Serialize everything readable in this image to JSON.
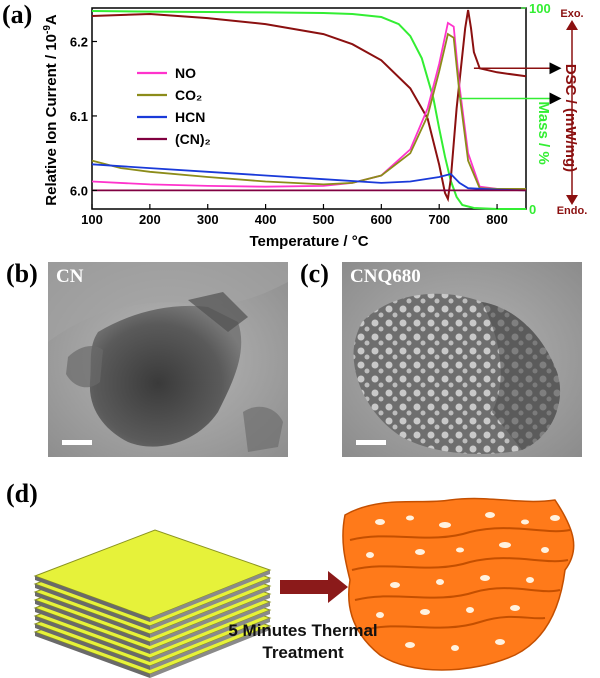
{
  "panels": {
    "a": "(a)",
    "b": "(b)",
    "c": "(c)",
    "d": "(d)"
  },
  "chart_data": {
    "type": "line",
    "xlabel": "Temperature / °C",
    "ylabel_left": "Relative Ion Current / 10",
    "ylabel_left_sup": "-9",
    "ylabel_left_unit": "A",
    "ylabel_right_mass": "Mass / %",
    "ylabel_right_dsc": "DSC / (mW/mg)",
    "dsc_exo_label": "Exo.",
    "dsc_endo_label": "Endo.",
    "xlim": [
      100,
      850
    ],
    "ylim_left": [
      5.975,
      6.245
    ],
    "ylim_right": [
      0,
      100
    ],
    "x_ticks": [
      "100",
      "200",
      "300",
      "400",
      "500",
      "600",
      "700",
      "800"
    ],
    "y_ticks_left": [
      "6.0",
      "6.1",
      "6.2"
    ],
    "y_ticks_right": [
      "0",
      "100"
    ],
    "legend_position": "upper-left",
    "series": [
      {
        "name": "NO",
        "color": "#ff33cc",
        "x": [
          100,
          200,
          300,
          400,
          500,
          550,
          600,
          650,
          680,
          700,
          715,
          725,
          735,
          750,
          770,
          800,
          850
        ],
        "y": [
          6.012,
          6.008,
          6.006,
          6.005,
          6.006,
          6.01,
          6.02,
          6.055,
          6.11,
          6.17,
          6.225,
          6.22,
          6.14,
          6.05,
          6.005,
          6.002,
          6.002
        ]
      },
      {
        "name": "CO₂",
        "color": "#8c8c1a",
        "x": [
          100,
          150,
          200,
          300,
          400,
          500,
          550,
          600,
          650,
          680,
          700,
          715,
          725,
          735,
          750,
          770,
          800,
          850
        ],
        "y": [
          6.04,
          6.03,
          6.025,
          6.018,
          6.012,
          6.008,
          6.01,
          6.02,
          6.05,
          6.1,
          6.16,
          6.21,
          6.205,
          6.13,
          6.04,
          6.003,
          6.002,
          6.002
        ]
      },
      {
        "name": "HCN",
        "color": "#1a3ad9",
        "x": [
          100,
          200,
          300,
          400,
          500,
          600,
          650,
          700,
          720,
          735,
          750,
          800,
          850
        ],
        "y": [
          6.035,
          6.03,
          6.025,
          6.02,
          6.015,
          6.01,
          6.012,
          6.018,
          6.022,
          6.01,
          6.003,
          6.001,
          6.0
        ]
      },
      {
        "name": "(CN)₂",
        "color": "#800040",
        "x": [
          100,
          850
        ],
        "y": [
          6.0,
          6.0
        ]
      }
    ],
    "mass_series": {
      "color": "#33ee33",
      "x": [
        100,
        200,
        300,
        400,
        500,
        550,
        600,
        630,
        650,
        670,
        690,
        700,
        710,
        720,
        730,
        740,
        760,
        800,
        850
      ],
      "y": [
        98.5,
        98.2,
        98.0,
        97.8,
        97.5,
        97.0,
        95.5,
        92,
        86,
        75,
        55,
        40,
        26,
        14,
        6,
        2,
        0.5,
        0,
        0
      ]
    },
    "dsc_series": {
      "color": "#8b1010",
      "x": [
        100,
        200,
        300,
        400,
        500,
        550,
        600,
        650,
        680,
        700,
        710,
        715,
        720,
        730,
        745,
        750,
        755,
        760,
        770,
        800,
        850
      ],
      "y": [
        96,
        97,
        95,
        92,
        87,
        82,
        74,
        60,
        45,
        22,
        8,
        5,
        15,
        50,
        90,
        99,
        90,
        78,
        70,
        68,
        66
      ]
    },
    "annotations": [
      {
        "target": "dsc",
        "x": 760,
        "y": 70,
        "arrow": "right"
      },
      {
        "target": "mass",
        "x": 735,
        "y": 55,
        "arrow": "right"
      }
    ]
  },
  "tem_b": {
    "label": "CN"
  },
  "tem_c": {
    "label": "CNQ680"
  },
  "schematic": {
    "caption_line1": "5 Minutes Thermal",
    "caption_line2": "Treatment",
    "sheet_color": "#e6f23a",
    "product_color": "#ff7a1a"
  }
}
